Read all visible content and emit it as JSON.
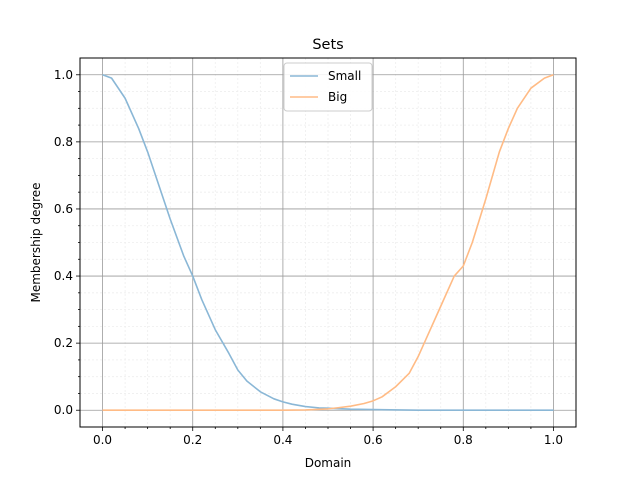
{
  "chart_data": {
    "type": "line",
    "title": "Sets",
    "xlabel": "Domain",
    "ylabel": "Membership degree",
    "xlim": [
      -0.05,
      1.05
    ],
    "ylim": [
      -0.05,
      1.05
    ],
    "xticks": [
      "0.0",
      "0.2",
      "0.4",
      "0.6",
      "0.8",
      "1.0"
    ],
    "yticks": [
      "0.0",
      "0.2",
      "0.4",
      "0.6",
      "0.8",
      "1.0"
    ],
    "grid": true,
    "minor_grid": true,
    "legend_position": "top-center",
    "series": [
      {
        "name": "Small",
        "color": "#8ab7d6",
        "x": [
          0.0,
          0.02,
          0.05,
          0.08,
          0.1,
          0.12,
          0.15,
          0.18,
          0.2,
          0.22,
          0.25,
          0.28,
          0.3,
          0.32,
          0.35,
          0.38,
          0.4,
          0.42,
          0.45,
          0.48,
          0.5,
          0.55,
          0.6,
          0.7,
          0.8,
          0.9,
          1.0
        ],
        "values": [
          1.0,
          0.99,
          0.93,
          0.84,
          0.77,
          0.69,
          0.57,
          0.46,
          0.4,
          0.33,
          0.24,
          0.17,
          0.12,
          0.087,
          0.055,
          0.034,
          0.025,
          0.018,
          0.011,
          0.007,
          0.006,
          0.003,
          0.002,
          0.0,
          0.0,
          0.0,
          0.0
        ]
      },
      {
        "name": "Big",
        "color": "#ffbb85",
        "x": [
          0.0,
          0.1,
          0.2,
          0.3,
          0.4,
          0.45,
          0.5,
          0.52,
          0.55,
          0.58,
          0.6,
          0.62,
          0.65,
          0.68,
          0.7,
          0.72,
          0.75,
          0.78,
          0.8,
          0.82,
          0.85,
          0.88,
          0.9,
          0.92,
          0.95,
          0.98,
          1.0
        ],
        "values": [
          0.0,
          0.0,
          0.0,
          0.0,
          0.0,
          0.001,
          0.004,
          0.007,
          0.012,
          0.02,
          0.028,
          0.04,
          0.07,
          0.11,
          0.16,
          0.22,
          0.31,
          0.4,
          0.43,
          0.5,
          0.63,
          0.77,
          0.84,
          0.9,
          0.96,
          0.99,
          1.0
        ]
      }
    ]
  }
}
